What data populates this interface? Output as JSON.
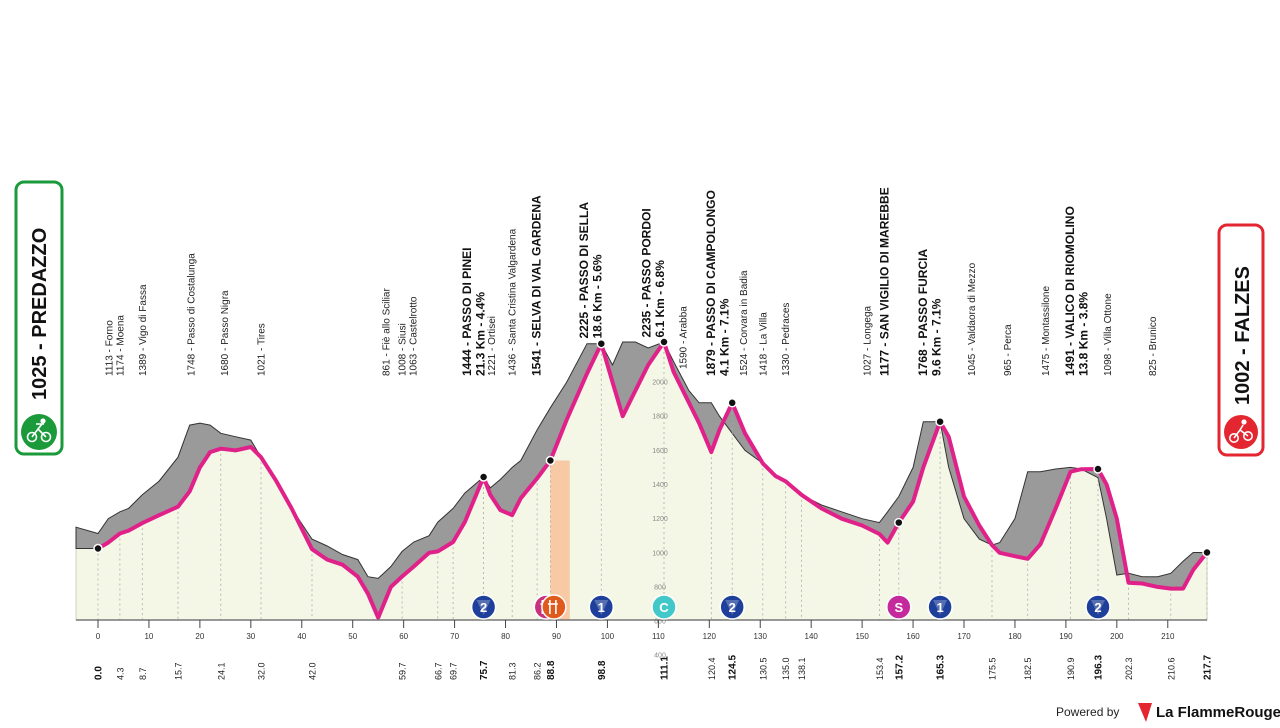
{
  "start": {
    "name": "PREDAZZO",
    "altitude": "1025",
    "label": "1025 - PREDAZZO",
    "color": "#1a9a3b"
  },
  "finish": {
    "name": "FALZES",
    "altitude": "1002",
    "label": "1002 - FALZES",
    "color": "#e3262f"
  },
  "footer": {
    "powered": "Powered by",
    "brand": "La FlammeRouge"
  },
  "colors": {
    "profile_line": "#e0218a",
    "profile_fill": "#f5f7e6",
    "relief": "#9a9a9a",
    "sella_band": "#f7b98e"
  },
  "chart_data": {
    "type": "area",
    "xlabel": "",
    "ylabel": "",
    "xlim": [
      0,
      217.7
    ],
    "ylim": [
      0,
      2235
    ],
    "x_ticks": [
      0,
      10,
      20,
      30,
      40,
      50,
      60,
      70,
      80,
      90,
      100,
      110,
      120,
      130,
      140,
      150,
      160,
      170,
      180,
      190,
      200,
      210
    ],
    "y_ticks": [
      400,
      600,
      800,
      1000,
      1200,
      1400,
      1600,
      1800,
      2000
    ],
    "profile": {
      "x": [
        0,
        2,
        4.3,
        6,
        8.7,
        12,
        15.7,
        18,
        20,
        22,
        24.1,
        27,
        30,
        32,
        35,
        38,
        42,
        45,
        48,
        51,
        53,
        55,
        57.5,
        59.7,
        62,
        65,
        66.7,
        69.7,
        72,
        75.7,
        77,
        79,
        81.3,
        83,
        86.2,
        88.8,
        92,
        96,
        98.8,
        101,
        103,
        105.5,
        108,
        111.1,
        113,
        116,
        118,
        120.4,
        122,
        124.5,
        127,
        130.5,
        133,
        135,
        138.1,
        142,
        146,
        150,
        153.4,
        155,
        157.2,
        160,
        162,
        165.3,
        167,
        170,
        173,
        175.5,
        177,
        180,
        182.5,
        185,
        188,
        190.9,
        193,
        196.3,
        198,
        200,
        202.3,
        205,
        208,
        210.6,
        213,
        215,
        217.7
      ],
      "y": [
        1025,
        1060,
        1113,
        1130,
        1174,
        1220,
        1270,
        1360,
        1500,
        1590,
        1610,
        1600,
        1620,
        1560,
        1420,
        1260,
        1021,
        960,
        930,
        860,
        760,
        620,
        800,
        861,
        920,
        1000,
        1008,
        1063,
        1180,
        1444,
        1340,
        1250,
        1221,
        1320,
        1436,
        1541,
        1780,
        2050,
        2225,
        2000,
        1800,
        1950,
        2100,
        2235,
        2060,
        1880,
        1760,
        1590,
        1720,
        1879,
        1700,
        1524,
        1450,
        1418,
        1340,
        1260,
        1200,
        1160,
        1110,
        1060,
        1177,
        1300,
        1500,
        1768,
        1680,
        1330,
        1160,
        1045,
        1000,
        980,
        965,
        1050,
        1260,
        1475,
        1490,
        1491,
        1400,
        1200,
        825,
        820,
        800,
        790,
        790,
        900,
        1002
      ]
    },
    "relief": {
      "x": [
        0,
        2,
        4.3,
        6,
        8.7,
        12,
        15.7,
        18,
        20,
        22,
        24.1,
        27,
        30,
        32,
        35,
        38,
        42,
        45,
        48,
        51,
        53,
        55,
        57.5,
        59.7,
        62,
        65,
        66.7,
        69.7,
        72,
        75.7,
        77,
        79,
        81.3,
        83,
        86.2,
        88.8,
        92,
        96,
        98.8,
        101,
        103,
        105.5,
        108,
        111.1,
        113,
        116,
        118,
        120.4,
        122,
        124.5,
        127,
        130.5,
        133,
        135,
        138.1,
        142,
        146,
        150,
        153.4,
        155,
        157.2,
        160,
        162,
        165.3,
        167,
        170,
        173,
        175.5,
        177,
        180,
        182.5,
        185,
        188,
        190.9,
        193,
        196.3,
        198,
        200,
        202.3,
        205,
        208,
        210.6,
        213,
        215,
        217.7
      ],
      "y": [
        1113,
        1200,
        1240,
        1260,
        1340,
        1420,
        1560,
        1748,
        1760,
        1748,
        1700,
        1680,
        1660,
        1560,
        1420,
        1260,
        1080,
        1040,
        990,
        960,
        860,
        850,
        920,
        1008,
        1063,
        1100,
        1180,
        1260,
        1350,
        1444,
        1380,
        1430,
        1500,
        1541,
        1720,
        1850,
        2000,
        2225,
        2225,
        2100,
        2235,
        2235,
        2200,
        2235,
        2120,
        1950,
        1879,
        1879,
        1800,
        1700,
        1600,
        1524,
        1440,
        1418,
        1340,
        1280,
        1240,
        1200,
        1177,
        1240,
        1330,
        1500,
        1768,
        1768,
        1500,
        1200,
        1080,
        1045,
        1060,
        1200,
        1475,
        1475,
        1491,
        1500,
        1491,
        1440,
        1200,
        870,
        880,
        860,
        860,
        880,
        950,
        1002,
        1002
      ]
    },
    "km_points": [
      {
        "km": 0,
        "label": "0.0",
        "bold": true
      },
      {
        "km": 4.3,
        "label": "4.3"
      },
      {
        "km": 8.7,
        "label": "8.7"
      },
      {
        "km": 15.7,
        "label": "15.7"
      },
      {
        "km": 24.1,
        "label": "24.1"
      },
      {
        "km": 32.0,
        "label": "32.0"
      },
      {
        "km": 42.0,
        "label": "42.0"
      },
      {
        "km": 59.7,
        "label": "59.7"
      },
      {
        "km": 66.7,
        "label": "66.7"
      },
      {
        "km": 69.7,
        "label": "69.7"
      },
      {
        "km": 75.7,
        "label": "75.7",
        "bold": true
      },
      {
        "km": 81.3,
        "label": "81.3"
      },
      {
        "km": 86.2,
        "label": "86.2"
      },
      {
        "km": 88.8,
        "label": "88.8",
        "bold": true
      },
      {
        "km": 98.8,
        "label": "98.8",
        "bold": true
      },
      {
        "km": 111.1,
        "label": "111.1",
        "bold": true
      },
      {
        "km": 120.4,
        "label": "120.4"
      },
      {
        "km": 124.5,
        "label": "124.5",
        "bold": true
      },
      {
        "km": 130.5,
        "label": "130.5"
      },
      {
        "km": 135.0,
        "label": "135.0"
      },
      {
        "km": 138.1,
        "label": "138.1"
      },
      {
        "km": 153.4,
        "label": "153.4"
      },
      {
        "km": 157.2,
        "label": "157.2",
        "bold": true
      },
      {
        "km": 165.3,
        "label": "165.3",
        "bold": true
      },
      {
        "km": 175.5,
        "label": "175.5"
      },
      {
        "km": 182.5,
        "label": "182.5"
      },
      {
        "km": 190.9,
        "label": "190.9"
      },
      {
        "km": 196.3,
        "label": "196.3",
        "bold": true
      },
      {
        "km": 202.3,
        "label": "202.3"
      },
      {
        "km": 210.6,
        "label": "210.6"
      },
      {
        "km": 217.7,
        "label": "217.7",
        "bold": true
      }
    ],
    "waypoints": [
      {
        "km": 2.2,
        "text": "1113 - Forno"
      },
      {
        "km": 4.3,
        "text": "1174 - Moena"
      },
      {
        "km": 8.7,
        "text": "1389 - Vigo di Fassa"
      },
      {
        "km": 18.3,
        "text": "1748 - Passo di Costalunga"
      },
      {
        "km": 24.8,
        "text": "1680 - Passo Nigra"
      },
      {
        "km": 32.0,
        "text": "1021 - Tires"
      },
      {
        "km": 56.5,
        "text": "861 - Fiè allo Sciliar"
      },
      {
        "km": 59.7,
        "text": "1008 - Siusi"
      },
      {
        "km": 61.8,
        "text": "1063 - Castelrotto"
      },
      {
        "km": 72.5,
        "text": "1444 - PASSO DI PINEI",
        "bold": true,
        "sub": "21.3 Km - 4.4%"
      },
      {
        "km": 77.2,
        "text": "1221 - Ortisei"
      },
      {
        "km": 81.3,
        "text": "1436 - Santa Cristina Valgardena"
      },
      {
        "km": 86.2,
        "text": "1541 - SELVA DI VAL GARDENA",
        "bold": true
      },
      {
        "km": 95.5,
        "text": "2225 - PASSO DI SELLA",
        "bold": true,
        "sub": "18.6 Km - 5.6%"
      },
      {
        "km": 107.8,
        "text": "2235 - PASSO PORDOI",
        "bold": true,
        "sub": "6.1 Km - 6.8%"
      },
      {
        "km": 114.8,
        "text": "1590 - Arabba"
      },
      {
        "km": 120.4,
        "text": "1879 - PASSO DI CAMPOLONGO",
        "bold": true,
        "sub": "4.1 Km - 7.1%"
      },
      {
        "km": 126.7,
        "text": "1524 - Corvara in Badia"
      },
      {
        "km": 130.5,
        "text": "1418 - La Villa"
      },
      {
        "km": 135.0,
        "text": "1330 - Pedraces"
      },
      {
        "km": 151.0,
        "text": "1027 - Longega"
      },
      {
        "km": 154.5,
        "text": "1177 - SAN VIGILIO DI MAREBBE",
        "bold": true
      },
      {
        "km": 162.0,
        "text": "1768 - PASSO FURCIA",
        "bold": true,
        "sub": "9.6 Km - 7.1%"
      },
      {
        "km": 171.5,
        "text": "1045 - Valdaora di Mezzo"
      },
      {
        "km": 178.5,
        "text": "965 - Perca"
      },
      {
        "km": 186.0,
        "text": "1475 - Montassilone"
      },
      {
        "km": 190.9,
        "text": "1491 - VALICO DI RIOMOLINO",
        "bold": true,
        "sub": "13.8 Km - 3.8%"
      },
      {
        "km": 198.2,
        "text": "1098 - Villa Ottone"
      },
      {
        "km": 207.0,
        "text": "825 - Brunico"
      }
    ],
    "markers": [
      {
        "km": 75.7,
        "label": "2",
        "kind": "gpm",
        "color": "#1e3f9a"
      },
      {
        "km": 88.0,
        "label": "",
        "kind": "feed",
        "color": "#c8327d"
      },
      {
        "km": 89.5,
        "label": "",
        "kind": "feed",
        "color": "#e05a1c"
      },
      {
        "km": 98.8,
        "label": "1",
        "kind": "gpm",
        "color": "#1e3f9a"
      },
      {
        "km": 111.1,
        "label": "C",
        "kind": "cima",
        "color": "#42c8c8"
      },
      {
        "km": 124.5,
        "label": "2",
        "kind": "gpm",
        "color": "#1e3f9a"
      },
      {
        "km": 157.2,
        "label": "S",
        "kind": "sprint",
        "color": "#c52a9d"
      },
      {
        "km": 165.3,
        "label": "1",
        "kind": "gpm",
        "color": "#1e3f9a"
      },
      {
        "km": 196.3,
        "label": "2",
        "kind": "gpm",
        "color": "#1e3f9a"
      }
    ],
    "sella_band": [
      88.8,
      92.6
    ]
  }
}
